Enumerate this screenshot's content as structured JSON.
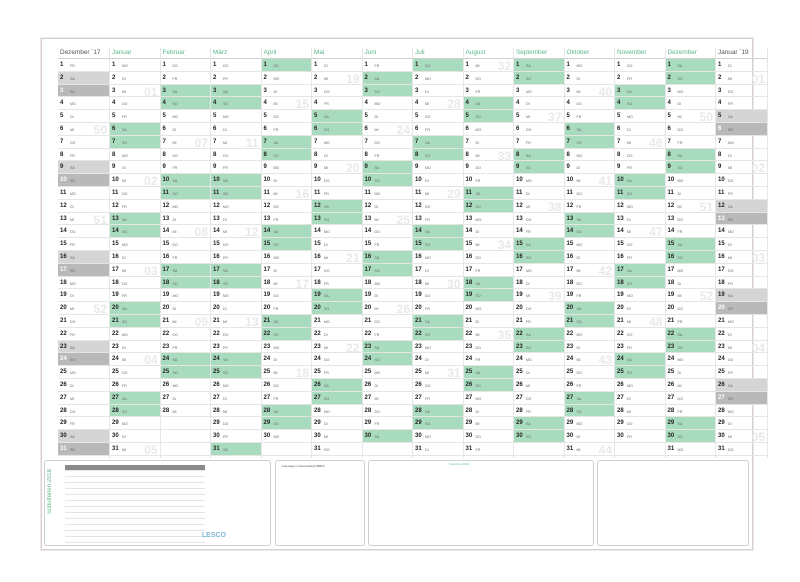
{
  "title_year": "2018",
  "side_title": "Schulferien 2018",
  "logo": "LESCO",
  "panel2_title": "Feiertage in Deutschland (BRD)",
  "panel3_title": "Vorschau 2019",
  "months": [
    {
      "name": "Dezember `17",
      "key": "dec"
    },
    {
      "name": "Januar",
      "key": "jan"
    },
    {
      "name": "Februar",
      "key": "feb"
    },
    {
      "name": "März",
      "key": "mar"
    },
    {
      "name": "April",
      "key": "apr"
    },
    {
      "name": "Mai",
      "key": "may"
    },
    {
      "name": "Juni",
      "key": "jun"
    },
    {
      "name": "Juli",
      "key": "jul"
    },
    {
      "name": "August",
      "key": "aug"
    },
    {
      "name": "September",
      "key": "sep"
    },
    {
      "name": "Oktober",
      "key": "oct"
    },
    {
      "name": "November",
      "key": "nov"
    },
    {
      "name": "Dezember",
      "key": "dec18"
    },
    {
      "name": "Januar `19",
      "key": "jan19"
    }
  ],
  "weekdays": [
    "MO",
    "DI",
    "MI",
    "DO",
    "FR",
    "SA",
    "SO"
  ],
  "start_weekday": {
    "dec": 4,
    "jan": 0,
    "feb": 3,
    "mar": 3,
    "apr": 6,
    "may": 1,
    "jun": 4,
    "jul": 6,
    "aug": 2,
    "sep": 5,
    "oct": 0,
    "nov": 3,
    "dec18": 5,
    "jan19": 1
  },
  "days_in_month": {
    "dec": 31,
    "jan": 31,
    "feb": 28,
    "mar": 31,
    "apr": 30,
    "may": 31,
    "jun": 30,
    "jul": 31,
    "aug": 31,
    "sep": 30,
    "oct": 31,
    "nov": 30,
    "dec18": 31,
    "jan19": 31
  },
  "week_numbers": {
    "jan": [
      "01",
      "02",
      "03",
      "04",
      "05"
    ],
    "feb": [
      "06",
      "07",
      "08",
      "09"
    ],
    "mar": [
      "10",
      "11",
      "12",
      "13"
    ],
    "apr": [
      "14",
      "15",
      "16",
      "17",
      "18"
    ],
    "may": [
      "19",
      "20",
      "21",
      "22"
    ],
    "jun": [
      "23",
      "24",
      "25",
      "26"
    ],
    "jul": [
      "27",
      "28",
      "29",
      "30",
      "31"
    ],
    "aug": [
      "32",
      "33",
      "34",
      "35"
    ],
    "sep": [
      "36",
      "37",
      "38",
      "39"
    ],
    "oct": [
      "40",
      "41",
      "42",
      "43",
      "44"
    ],
    "nov": [
      "45",
      "46",
      "47",
      "48"
    ],
    "dec18": [
      "49",
      "50",
      "51",
      "52"
    ],
    "dec": [
      "49",
      "50",
      "51",
      "52"
    ],
    "jan19": [
      "01",
      "02",
      "03",
      "04",
      "05"
    ]
  }
}
